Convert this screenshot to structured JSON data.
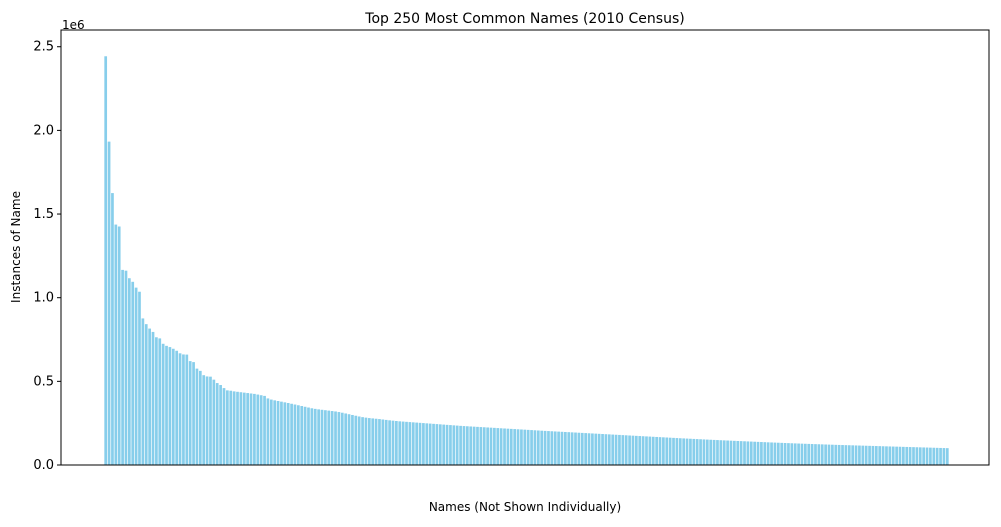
{
  "chart_data": {
    "type": "bar",
    "title": "Top 250 Most Common Names (2010 Census)",
    "xlabel": "Names (Not Shown Individually)",
    "ylabel": "Instances of Name",
    "y_offset_label": "1e6",
    "ylim": [
      0,
      2600000
    ],
    "yticks": [
      {
        "value": 0,
        "label": "0.0"
      },
      {
        "value": 500000,
        "label": "0.5"
      },
      {
        "value": 1000000,
        "label": "1.0"
      },
      {
        "value": 1500000,
        "label": "1.5"
      },
      {
        "value": 2000000,
        "label": "2.0"
      },
      {
        "value": 2500000,
        "label": "2.5"
      }
    ],
    "bar_color": "#87ceeb",
    "grid": false,
    "legend": "none",
    "bar_count": 250,
    "values": [
      2442977,
      1932812,
      1625252,
      1437026,
      1425470,
      1166120,
      1161437,
      1116357,
      1094924,
      1060159,
      1035615,
      876133,
      841926,
      815434,
      795408,
      763455,
      756759,
      724489,
      712193,
      704801,
      694764,
      682679,
      667609,
      660839,
      659890,
      620925,
      614949,
      575987,
      562691,
      536813,
      529327,
      527993,
      510019,
      489826,
      477974,
      459711,
      446000,
      444000,
      440000,
      437500,
      435000,
      432500,
      430000,
      427500,
      425000,
      421000,
      417000,
      413000,
      398000,
      391000,
      386500,
      382500,
      378500,
      374500,
      370500,
      366000,
      361500,
      357000,
      352500,
      348000,
      343500,
      339000,
      335500,
      332500,
      330000,
      327500,
      325000,
      322500,
      320000,
      316500,
      312500,
      308000,
      303500,
      299000,
      294500,
      290000,
      286000,
      283000,
      280500,
      278500,
      276500,
      274500,
      272000,
      269500,
      267000,
      265000,
      263000,
      261000,
      259500,
      258000,
      256500,
      255000,
      253500,
      252000,
      250500,
      249000,
      247500,
      246000,
      244500,
      243000,
      241500,
      240000,
      238500,
      237000,
      235500,
      234000,
      232700,
      231500,
      230300,
      229100,
      227900,
      226700,
      225500,
      224300,
      223100,
      221900,
      220700,
      219500,
      218300,
      217100,
      215900,
      214700,
      213500,
      212300,
      211100,
      209900,
      208700,
      207500,
      206300,
      205100,
      203900,
      202800,
      201700,
      200600,
      199500,
      198400,
      197300,
      196200,
      195100,
      194000,
      192900,
      191800,
      190700,
      189600,
      188500,
      187400,
      186300,
      185200,
      184100,
      183000,
      181900,
      180800,
      179700,
      178600,
      177500,
      176400,
      175300,
      174200,
      173100,
      172000,
      170900,
      169800,
      168700,
      167600,
      166500,
      165400,
      164300,
      163200,
      162100,
      161000,
      159900,
      158900,
      157900,
      156900,
      155900,
      154900,
      153900,
      152900,
      151900,
      150900,
      149900,
      149000,
      148100,
      147200,
      146300,
      145400,
      144500,
      143600,
      142700,
      141800,
      140900,
      140000,
      139100,
      138200,
      137300,
      136400,
      135500,
      134700,
      133900,
      133100,
      132300,
      131500,
      130700,
      129900,
      129100,
      128300,
      127500,
      126800,
      126100,
      125400,
      124700,
      124000,
      123300,
      122600,
      121900,
      121200,
      120500,
      119900,
      119300,
      118700,
      118100,
      117500,
      116900,
      116300,
      115700,
      115100,
      114500,
      113900,
      113300,
      112700,
      112100,
      111500,
      110900,
      110300,
      109700,
      109100,
      108500,
      107900,
      107300,
      106700,
      106100,
      105500,
      104900,
      104300,
      103700,
      103100,
      102500,
      101900,
      101300,
      100700
    ]
  }
}
